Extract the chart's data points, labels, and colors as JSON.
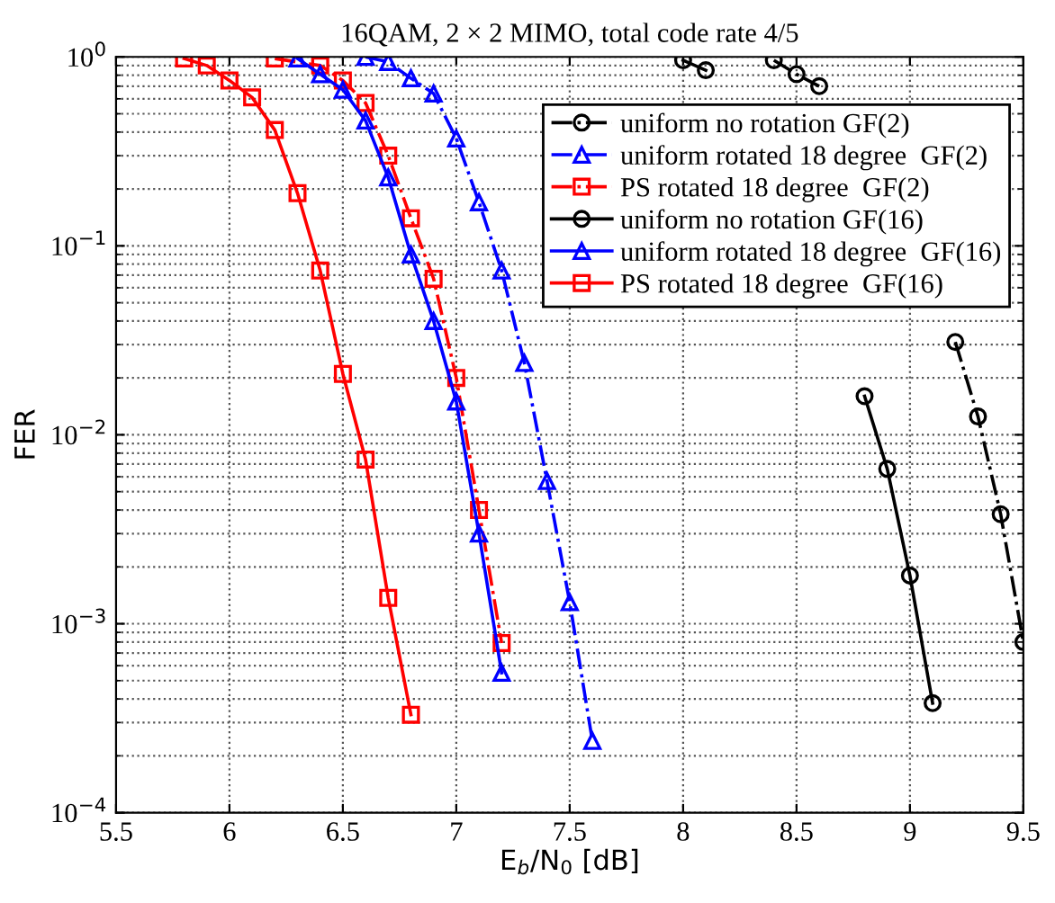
{
  "chart_data": {
    "type": "line",
    "title": "16QAM, 2 × 2 MIMO, total code rate 4/5",
    "xlabel": "E$_{b}$/N$_{0}$ [dB]",
    "ylabel": "FER",
    "log": "y",
    "grid": true,
    "legend": "top right",
    "xlim": [
      5.5,
      9.5
    ],
    "xticks": [
      5.5,
      6,
      6.5,
      7,
      7.5,
      8,
      8.5,
      9,
      9.5
    ],
    "ylim": [
      0.0001,
      1
    ],
    "yticks": [
      {
        "value": 0.0001,
        "label": "10$^{−4}$"
      },
      {
        "value": 0.001,
        "label": "10$^{−3}$"
      },
      {
        "value": 0.01,
        "label": "10$^{−2}$"
      },
      {
        "value": 0.1,
        "label": "10$^{−1}$"
      },
      {
        "value": 1,
        "label": "10$^{0}$"
      }
    ],
    "series": [
      {
        "name": "uniform no rotation GF(2)",
        "color": "#000000",
        "marker": "circle",
        "line_style": "dashed",
        "x": [
          8.4,
          8.5,
          8.6,
          8.7,
          8.8,
          8.9,
          9.0,
          9.1,
          9.2,
          9.3,
          9.4,
          9.5
        ],
        "values": [
          0.96,
          0.81,
          0.7,
          null,
          null,
          null,
          null,
          null,
          0.031,
          0.0125,
          0.0038,
          0.0008
        ]
      },
      {
        "name": "uniform rotated 18 degree  GF(2)",
        "color": "#0000ff",
        "marker": "triangle",
        "line_style": "dashed",
        "x": [
          6.6,
          6.7,
          6.8,
          6.9,
          7.0,
          7.1,
          7.2,
          7.3,
          7.4,
          7.5,
          7.6
        ],
        "values": [
          1.0,
          0.94,
          0.77,
          0.64,
          0.37,
          0.17,
          0.074,
          0.024,
          0.0057,
          0.0013,
          0.00024
        ]
      },
      {
        "name": "PS rotated 18 degree  GF(2)",
        "color": "#ff0000",
        "marker": "square",
        "line_style": "dashed",
        "x": [
          6.2,
          6.4,
          6.5,
          6.6,
          6.7,
          6.8,
          6.9,
          7.0,
          7.1,
          7.2
        ],
        "values": [
          0.98,
          0.9,
          0.75,
          0.57,
          0.3,
          0.14,
          0.067,
          0.02,
          0.004,
          0.00079
        ]
      },
      {
        "name": "uniform no rotation GF(16)",
        "color": "#000000",
        "marker": "circle",
        "line_style": "solid",
        "x": [
          8.0,
          8.1,
          8.2,
          8.3,
          8.4,
          8.5,
          8.6,
          8.7,
          8.8,
          8.9,
          9.0,
          9.1
        ],
        "values": [
          0.96,
          0.85,
          null,
          null,
          null,
          null,
          null,
          null,
          0.016,
          0.0066,
          0.0018,
          0.00038
        ]
      },
      {
        "name": "uniform rotated 18 degree  GF(16)",
        "color": "#0000ff",
        "marker": "triangle",
        "line_style": "solid",
        "x": [
          6.3,
          6.4,
          6.5,
          6.6,
          6.7,
          6.8,
          6.9,
          7.0,
          7.1,
          7.2
        ],
        "values": [
          0.98,
          0.81,
          0.67,
          0.46,
          0.23,
          0.09,
          0.04,
          0.015,
          0.003,
          0.00055
        ]
      },
      {
        "name": "PS rotated 18 degree  GF(16)",
        "color": "#ff0000",
        "marker": "square",
        "line_style": "solid",
        "x": [
          5.8,
          5.9,
          6.0,
          6.1,
          6.2,
          6.3,
          6.4,
          6.5,
          6.6,
          6.7,
          6.8
        ],
        "values": [
          0.98,
          0.9,
          0.75,
          0.61,
          0.41,
          0.19,
          0.074,
          0.021,
          0.0074,
          0.00137,
          0.00033
        ]
      }
    ]
  }
}
